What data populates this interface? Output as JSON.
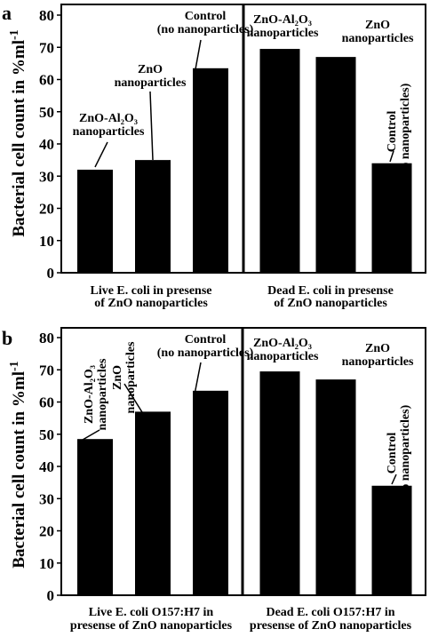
{
  "colors": {
    "bar": "#000000",
    "axis": "#000000",
    "background": "#ffffff"
  },
  "y_axis_label": {
    "main": "Bacterial cell count in %ml",
    "superscript": "-1"
  },
  "chart_data": [
    {
      "type": "bar",
      "panel_letter": "a",
      "ylim": [
        0,
        80
      ],
      "yticks": [
        "0",
        "10",
        "20",
        "30",
        "40",
        "50",
        "60",
        "70",
        "80"
      ],
      "grid": false,
      "groups": [
        {
          "caption": [
            "Live E. coli in presense",
            "of ZnO nanoparticles"
          ],
          "bars": [
            {
              "value": 32,
              "label": [
                "ZnO-Al₂O₃",
                "nanoparticles"
              ]
            },
            {
              "value": 35,
              "label": [
                "ZnO",
                "nanoparticles"
              ]
            },
            {
              "value": 63.5,
              "label": [
                "Control",
                "(no nanoparticles)"
              ]
            }
          ]
        },
        {
          "caption": [
            "Dead E. coli in presense",
            "of ZnO nanoparticles"
          ],
          "bars": [
            {
              "value": 69.5,
              "label": [
                "ZnO-Al₂O₃",
                "nanoparticles"
              ]
            },
            {
              "value": 67,
              "label": [
                "ZnO",
                "nanoparticles"
              ]
            },
            {
              "value": 34,
              "label": [
                "Control",
                "(no nanoparticles)"
              ]
            }
          ]
        }
      ]
    },
    {
      "type": "bar",
      "panel_letter": "b",
      "ylim": [
        0,
        80
      ],
      "yticks": [
        "0",
        "10",
        "20",
        "30",
        "40",
        "50",
        "60",
        "70",
        "80"
      ],
      "grid": false,
      "groups": [
        {
          "caption": [
            "Live E. coli O157:H7 in",
            "presense of ZnO nanoparticles"
          ],
          "bars": [
            {
              "value": 48.5,
              "label": [
                "ZnO-Al₂O₃",
                "nanoparticles"
              ]
            },
            {
              "value": 57,
              "label": [
                "ZnO",
                "nanoparticles"
              ]
            },
            {
              "value": 63.5,
              "label": [
                "Control",
                "(no nanoparticles)"
              ]
            }
          ]
        },
        {
          "caption": [
            "Dead E. coli O157:H7 in",
            "presense of ZnO nanoparticles"
          ],
          "bars": [
            {
              "value": 69.5,
              "label": [
                "ZnO-Al₂O₃",
                "nanoparticles"
              ]
            },
            {
              "value": 67,
              "label": [
                "ZnO",
                "nanoparticles"
              ]
            },
            {
              "value": 34,
              "label": [
                "Control",
                "(no nanoparticles)"
              ]
            }
          ]
        }
      ]
    }
  ]
}
